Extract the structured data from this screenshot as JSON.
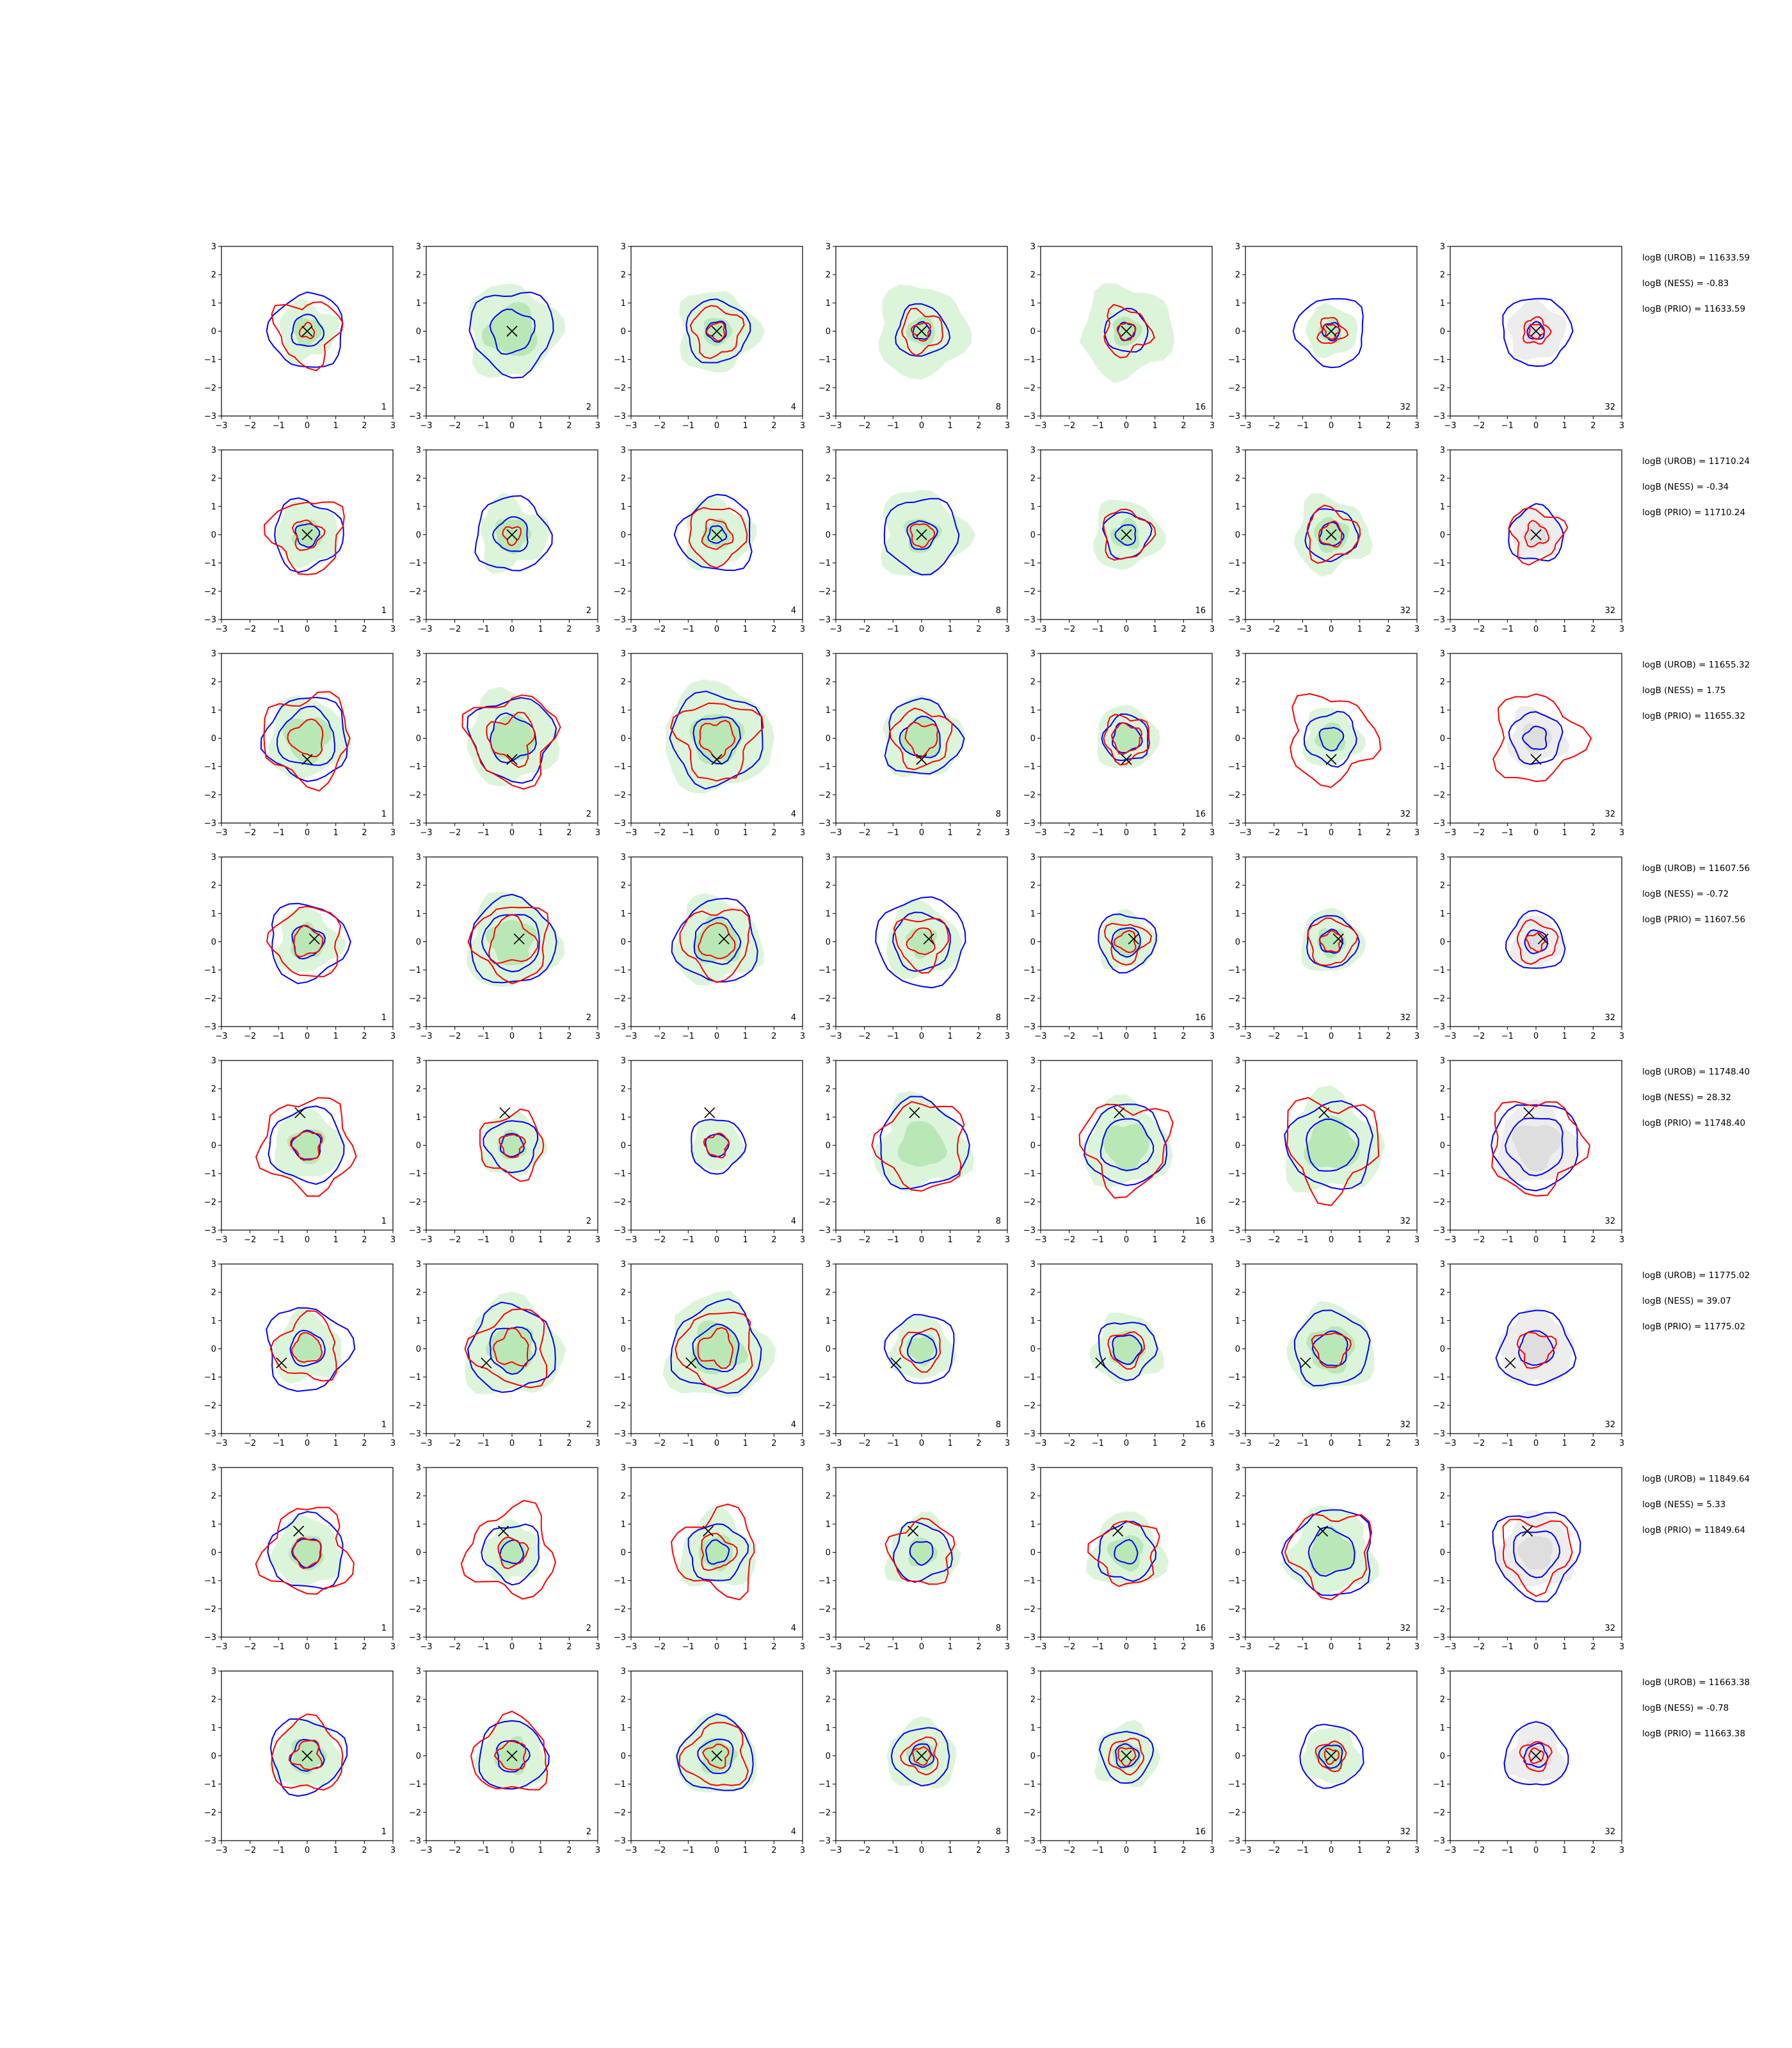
{
  "colors": {
    "green_fill_outer": "#dcf5da",
    "green_fill_inner": "#b9e8b6",
    "grey_fill_outer": "#ededed",
    "grey_fill_inner": "#dedede",
    "blue_contour": "#0000ff",
    "red_contour": "#ff0000",
    "cross": "#000000"
  },
  "chart_data": {
    "type": "contour-grid",
    "rows": 8,
    "cols": 7,
    "xlim": [
      -3,
      3
    ],
    "ylim": [
      -3,
      3
    ],
    "xticks": [
      -3,
      -2,
      -1,
      0,
      1,
      2,
      3
    ],
    "yticks": [
      -3,
      -2,
      -1,
      0,
      1,
      2,
      3
    ],
    "col_corner_labels": [
      "1",
      "2",
      "4",
      "8",
      "16",
      "32",
      "32"
    ],
    "last_col_fill": "grey",
    "rows_data": [
      {
        "annotations": [
          "logB (UROB) = 11633.59",
          "logB (NESS) = -0.83",
          "logB (PRIO) = 11633.59"
        ],
        "cross": [
          0,
          0
        ],
        "cells": [
          {
            "green": [
              1.0,
              0.5
            ],
            "blue": [
              1.3,
              0.55
            ],
            "red": [
              1.1,
              0.25
            ]
          },
          {
            "green": [
              1.6,
              0.9
            ],
            "blue": [
              1.45,
              0.75
            ],
            "red": []
          },
          {
            "green": [
              1.4,
              0.5
            ],
            "blue": [
              1.1,
              0.35
            ],
            "red": [
              0.85,
              0.3
            ]
          },
          {
            "green": [
              1.6,
              0.5
            ],
            "blue": [
              0.9,
              0.3
            ],
            "red": [
              0.7,
              0.3
            ]
          },
          {
            "green": [
              1.6,
              0.5
            ],
            "blue": [
              0.75,
              0.3
            ],
            "red": [
              0.8,
              0.3
            ]
          },
          {
            "green": [
              0.9,
              0.4
            ],
            "blue": [
              1.2,
              0.3
            ],
            "red": [
              0.45,
              0.25
            ]
          },
          {
            "grey": [
              1.0,
              0.4
            ],
            "blue": [
              1.2,
              0.3
            ],
            "red": [
              0.45,
              0.25
            ]
          }
        ]
      },
      {
        "annotations": [
          "logB (UROB) = 11710.24",
          "logB (NESS) = -0.34",
          "logB (PRIO) = 11710.24"
        ],
        "cross": [
          0,
          0
        ],
        "cells": [
          {
            "green": [
              1.1,
              0.5
            ],
            "blue": [
              1.2,
              0.4
            ],
            "red": [
              1.25,
              0.5
            ]
          },
          {
            "green": [
              1.2,
              0.6
            ],
            "blue": [
              1.3,
              0.6
            ],
            "red": [
              0.3
            ]
          },
          {
            "green": [
              1.2,
              0.5
            ],
            "blue": [
              1.3,
              0.3
            ],
            "red": [
              1.0,
              0.5
            ]
          },
          {
            "green": [
              1.5,
              0.6
            ],
            "blue": [
              1.3,
              0.5
            ],
            "red": [
              0.4
            ]
          },
          {
            "green": [
              1.2,
              0.5
            ],
            "blue": [
              0.8,
              0.35
            ],
            "red": [
              0.85
            ]
          },
          {
            "green": [
              1.3,
              0.6
            ],
            "blue": [
              0.9,
              0.4
            ],
            "red": [
              0.9,
              0.4
            ]
          },
          {
            "grey": [
              0.9,
              0.4
            ],
            "blue": [
              0.95
            ],
            "red": [
              0.9,
              0.4
            ]
          }
        ]
      },
      {
        "annotations": [
          "logB (UROB) = 11655.32",
          "logB (NESS) = 1.75",
          "logB (PRIO) = 11655.32"
        ],
        "cross": [
          0,
          -0.75
        ],
        "cells": [
          {
            "green": [
              1.4,
              0.8
            ],
            "blue": [
              1.45,
              1.0
            ],
            "red": [
              1.5,
              0.6
            ]
          },
          {
            "green": [
              1.6,
              0.8
            ],
            "blue": [
              1.45,
              0.8
            ],
            "red": [
              1.5,
              0.8
            ]
          },
          {
            "green": [
              1.9,
              0.9
            ],
            "blue": [
              1.6,
              0.8
            ],
            "red": [
              1.35,
              0.6
            ]
          },
          {
            "green": [
              1.4,
              0.7
            ],
            "blue": [
              1.3,
              0.7
            ],
            "red": [
              1.0,
              0.55
            ]
          },
          {
            "green": [
              1.1,
              0.5
            ],
            "blue": [
              0.8,
              0.5
            ],
            "red": [
              0.8,
              0.5
            ]
          },
          {
            "green": [
              1.0,
              0.5
            ],
            "blue": [
              0.9,
              0.4
            ],
            "red": [
              1.5
            ]
          },
          {
            "grey": [
              1.0,
              0.5
            ],
            "blue": [
              0.9,
              0.4
            ],
            "red": [
              1.5
            ]
          }
        ]
      },
      {
        "annotations": [
          "logB (UROB) = 11607.56",
          "logB (NESS) = -0.72",
          "logB (PRIO) = 11607.56"
        ],
        "cross": [
          0.25,
          0.1
        ],
        "cells": [
          {
            "green": [
              1.1,
              0.6
            ],
            "blue": [
              1.35,
              0.55
            ],
            "red": [
              1.2,
              0.5
            ]
          },
          {
            "green": [
              1.6,
              0.8
            ],
            "blue": [
              1.5,
              1.0
            ],
            "red": [
              1.3,
              0.8
            ]
          },
          {
            "green": [
              1.5,
              0.8
            ],
            "blue": [
              1.45,
              0.8
            ],
            "red": [
              1.2,
              0.6
            ]
          },
          {
            "green": [
              1.3,
              0.5
            ],
            "blue": [
              1.55,
              1.0
            ],
            "red": [
              0.9,
              0.45
            ]
          },
          {
            "green": [
              1.0,
              0.5
            ],
            "blue": [
              1.0,
              0.5
            ],
            "red": [
              0.7,
              0.35
            ]
          },
          {
            "green": [
              1.1,
              0.5
            ],
            "blue": [
              0.9,
              0.4
            ],
            "red": [
              0.8,
              0.35
            ]
          },
          {
            "grey": [
              0.9,
              0.4
            ],
            "blue": [
              1.0,
              0.4
            ],
            "red": [
              0.7,
              0.3
            ]
          }
        ]
      },
      {
        "annotations": [
          "logB (UROB) = 11748.40",
          "logB (NESS) = 28.32",
          "logB (PRIO) = 11748.40"
        ],
        "cross": [
          -0.25,
          1.15
        ],
        "cells": [
          {
            "green": [
              1.2,
              0.6
            ],
            "blue": [
              1.3,
              0.5
            ],
            "red": [
              1.6,
              0.5
            ]
          },
          {
            "green": [
              1.1,
              0.5
            ],
            "blue": [
              0.9,
              0.4
            ],
            "red": [
              1.1,
              0.4
            ]
          },
          {
            "green": [
              0.9,
              0.4
            ],
            "blue": [
              0.95,
              0.4
            ],
            "red": [
              0.4
            ]
          },
          {
            "green": [
              1.6,
              0.8
            ],
            "blue": [
              1.55
            ],
            "red": [
              1.5
            ]
          },
          {
            "green": [
              1.5,
              0.8
            ],
            "blue": [
              1.4,
              0.9
            ],
            "red": [
              1.5
            ]
          },
          {
            "green": [
              1.7,
              0.9
            ],
            "blue": [
              1.5,
              0.9
            ],
            "red": [
              1.6
            ]
          },
          {
            "grey": [
              1.4,
              0.8
            ],
            "blue": [
              1.5,
              1.0
            ],
            "red": [
              1.6
            ]
          }
        ]
      },
      {
        "annotations": [
          "logB (UROB) = 11775.02",
          "logB (NESS) = 39.07",
          "logB (PRIO) = 11775.02"
        ],
        "cross": [
          -0.9,
          -0.5
        ],
        "cells": [
          {
            "green": [
              1.2,
              0.5
            ],
            "blue": [
              1.45,
              0.6
            ],
            "red": [
              1.1,
              0.5
            ]
          },
          {
            "green": [
              1.7,
              0.8
            ],
            "blue": [
              1.5,
              0.8
            ],
            "red": [
              1.3,
              0.6
            ]
          },
          {
            "green": [
              1.8,
              0.9
            ],
            "blue": [
              1.55,
              0.8
            ],
            "red": [
              1.3,
              0.6
            ]
          },
          {
            "green": [
              1.1,
              0.5
            ],
            "blue": [
              1.2,
              0.5
            ],
            "red": [
              0.7
            ]
          },
          {
            "green": [
              1.2,
              0.6
            ],
            "blue": [
              1.0,
              0.5
            ],
            "red": [
              0.6
            ]
          },
          {
            "green": [
              1.5,
              0.8
            ],
            "blue": [
              1.3,
              0.6
            ],
            "red": [
              0.6
            ]
          },
          {
            "grey": [
              1.3,
              0.6
            ],
            "blue": [
              1.3,
              0.6
            ],
            "red": [
              0.6
            ]
          }
        ]
      },
      {
        "annotations": [
          "logB (UROB) = 11849.64",
          "logB (NESS) = 5.33",
          "logB (PRIO) = 11849.64"
        ],
        "cross": [
          -0.3,
          0.75
        ],
        "cells": [
          {
            "green": [
              1.2,
              0.6
            ],
            "blue": [
              1.3,
              0.5
            ],
            "red": [
              1.5,
              0.5
            ]
          },
          {
            "green": [
              1.0,
              0.5
            ],
            "blue": [
              1.0,
              0.4
            ],
            "red": [
              1.5,
              0.5
            ]
          },
          {
            "green": [
              1.3,
              0.6
            ],
            "blue": [
              1.0,
              0.4
            ],
            "red": [
              1.4,
              0.6
            ]
          },
          {
            "green": [
              1.2,
              0.5
            ],
            "blue": [
              1.0,
              0.4
            ],
            "red": [
              1.1
            ]
          },
          {
            "green": [
              1.3,
              0.6
            ],
            "blue": [
              1.0,
              0.4
            ],
            "red": [
              1.1
            ]
          },
          {
            "green": [
              1.5,
              0.8
            ],
            "blue": [
              1.5,
              0.8
            ],
            "red": [
              1.4
            ]
          },
          {
            "grey": [
              1.3,
              0.6
            ],
            "blue": [
              1.5,
              0.8
            ],
            "red": [
              1.2
            ]
          }
        ]
      },
      {
        "annotations": [
          "logB (UROB) = 11663.38",
          "logB (NESS) = -0.78",
          "logB (PRIO) = 11663.38"
        ],
        "cross": [
          0,
          0
        ],
        "cells": [
          {
            "green": [
              1.2,
              0.6
            ],
            "blue": [
              1.3,
              0.55
            ],
            "red": [
              1.25,
              0.5
            ]
          },
          {
            "green": [
              1.2,
              0.6
            ],
            "blue": [
              1.2,
              0.55
            ],
            "red": [
              1.3,
              0.5
            ]
          },
          {
            "green": [
              1.4,
              0.6
            ],
            "blue": [
              1.3,
              0.6
            ],
            "red": [
              1.1,
              0.4
            ]
          },
          {
            "green": [
              1.2,
              0.5
            ],
            "blue": [
              1.0,
              0.4
            ],
            "red": [
              0.6,
              0.3
            ]
          },
          {
            "green": [
              1.1,
              0.5
            ],
            "blue": [
              0.9,
              0.4
            ],
            "red": [
              0.6,
              0.3
            ]
          },
          {
            "green": [
              1.0,
              0.5
            ],
            "blue": [
              1.1,
              0.4
            ],
            "red": [
              0.5,
              0.25
            ]
          },
          {
            "grey": [
              1.0,
              0.5
            ],
            "blue": [
              1.1,
              0.4
            ],
            "red": [
              0.5,
              0.25
            ]
          }
        ]
      }
    ]
  }
}
